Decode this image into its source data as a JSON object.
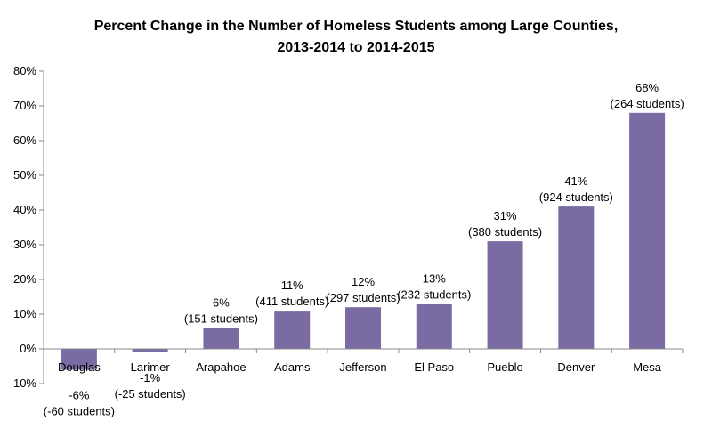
{
  "chart_data": {
    "type": "bar",
    "title_line1": "Percent Change in the Number of Homeless Students among Large Counties,",
    "title_line2": "2013-2014  to 2014-2015",
    "xlabel": "",
    "ylabel": "",
    "ylim": [
      -10,
      80
    ],
    "yticks": [
      -10,
      0,
      10,
      20,
      30,
      40,
      50,
      60,
      70,
      80
    ],
    "ytick_labels": [
      "-10%",
      "0%",
      "10%",
      "20%",
      "30%",
      "40%",
      "50%",
      "60%",
      "70%",
      "80%"
    ],
    "categories": [
      "Douglas",
      "Larimer",
      "Arapahoe",
      "Adams",
      "Jefferson",
      "El Paso",
      "Pueblo",
      "Denver",
      "Mesa"
    ],
    "values": [
      -6,
      -1,
      6,
      11,
      12,
      13,
      31,
      41,
      68
    ],
    "label_pct": [
      "-6%",
      "-1%",
      "6%",
      "11%",
      "12%",
      "13%",
      "31%",
      "41%",
      "68%"
    ],
    "label_students": [
      "(-60 students)",
      "(-25 students)",
      "(151 students)",
      "(411 students)",
      "(297 students)",
      "(232 students)",
      "(380 students)",
      "(924 students)",
      "(264 students)"
    ],
    "bar_color": "#7b6ba3",
    "grid": false,
    "legend": "none"
  }
}
